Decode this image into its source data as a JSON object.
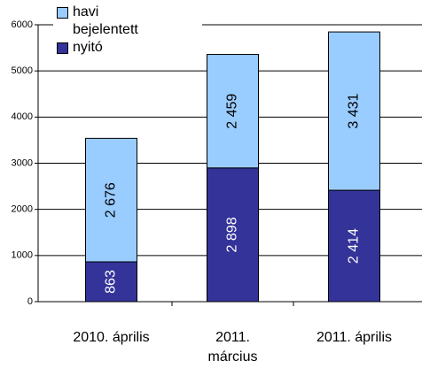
{
  "chart_data": {
    "type": "stacked-bar",
    "categories": [
      "2010. április",
      "2011. március",
      "2011. április"
    ],
    "series": [
      {
        "name": "nyitó",
        "color": "#333399",
        "values": [
          863,
          2898,
          2414
        ],
        "value_labels": [
          "863",
          "2 898",
          "2 414"
        ]
      },
      {
        "name": "havi bejelentett",
        "color": "#99ccff",
        "values": [
          2676,
          2459,
          3431
        ],
        "value_labels": [
          "2 676",
          "2 459",
          "3 431"
        ]
      }
    ],
    "ylim": [
      0,
      6000
    ],
    "yticks": [
      0,
      1000,
      2000,
      3000,
      4000,
      5000,
      6000
    ],
    "grid": true
  }
}
